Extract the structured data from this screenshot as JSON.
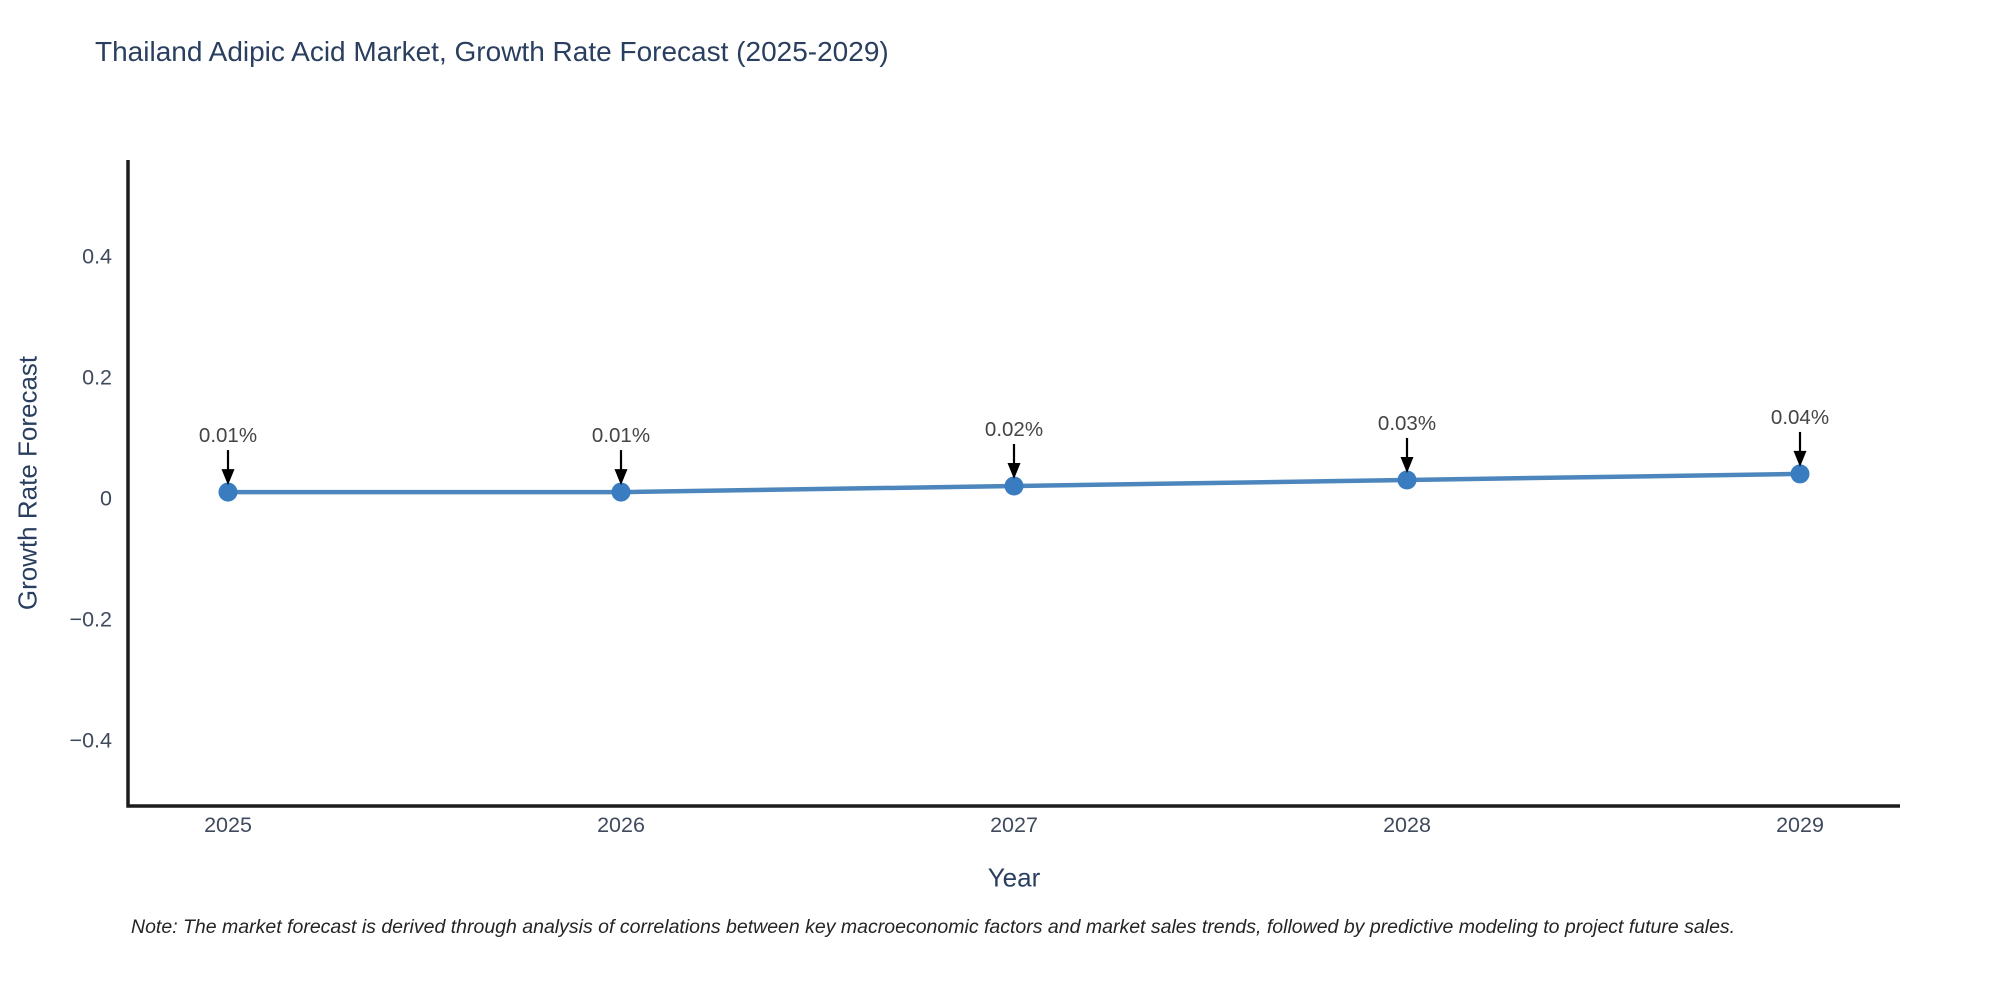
{
  "title": "Thailand Adipic Acid Market, Growth Rate Forecast (2025-2029)",
  "note": "Note: The market forecast is derived through analysis of correlations between key macroeconomic factors and market sales trends, followed by predictive modeling to project future sales.",
  "chart_data": {
    "type": "line",
    "title": "Thailand Adipic Acid Market, Growth Rate Forecast (2025-2029)",
    "xlabel": "Year",
    "ylabel": "Growth Rate Forecast",
    "x": [
      2025,
      2026,
      2027,
      2028,
      2029
    ],
    "x_tick_labels": [
      "2025",
      "2026",
      "2027",
      "2028",
      "2029"
    ],
    "series": [
      {
        "name": "Growth Rate Forecast",
        "values": [
          0.01,
          0.01,
          0.02,
          0.03,
          0.04
        ],
        "point_labels": [
          "0.01%",
          "0.01%",
          "0.02%",
          "0.03%",
          "0.04%"
        ]
      }
    ],
    "y_ticks": [
      0.4,
      0.2,
      0,
      -0.2,
      -0.4
    ],
    "y_tick_labels": [
      "0.4",
      "0.2",
      "0",
      "−0.2",
      "−0.4"
    ],
    "ylim": [
      -0.509,
      0.559
    ],
    "grid": false,
    "legend_position": "none",
    "annotations_style": "value label with downward arrow above each point",
    "colors": {
      "line": "#4d86bc",
      "marker": "#3a7cc0",
      "axis": "#1c1c1c",
      "tick_text": "#3f4a5c",
      "annotation_text": "#444444",
      "annotation_arrow": "#000000",
      "title_text": "#2a3f5f"
    }
  }
}
